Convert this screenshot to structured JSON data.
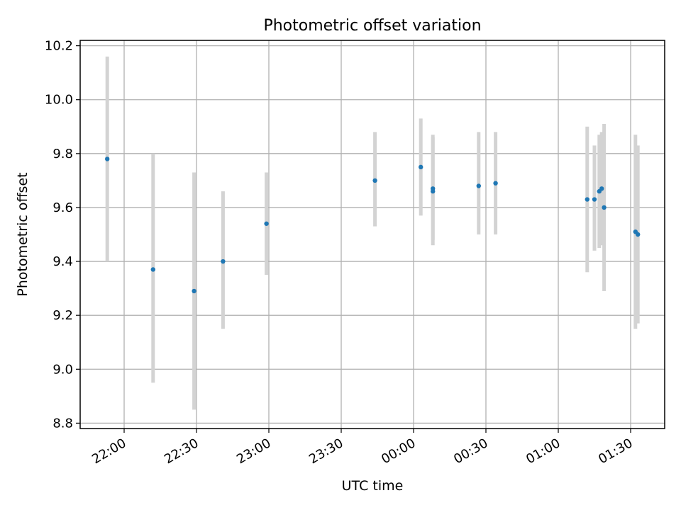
{
  "chart_data": {
    "type": "scatter",
    "title": "Photometric offset variation",
    "xlabel": "UTC time",
    "ylabel": "Photometric offset",
    "x_tick_labels": [
      "22:00",
      "22:30",
      "23:00",
      "23:30",
      "00:00",
      "00:30",
      "01:00",
      "01:30"
    ],
    "y_tick_labels": [
      "8.8",
      "9.0",
      "9.2",
      "9.4",
      "9.6",
      "9.8",
      "10.0",
      "10.2"
    ],
    "ylim": [
      8.78,
      10.22
    ],
    "grid": true,
    "points": [
      {
        "time": "21:53",
        "value": 9.78,
        "err_low": 9.4,
        "err_high": 10.16
      },
      {
        "time": "22:12",
        "value": 9.37,
        "err_low": 8.95,
        "err_high": 9.8
      },
      {
        "time": "22:29",
        "value": 9.29,
        "err_low": 8.85,
        "err_high": 9.73
      },
      {
        "time": "22:41",
        "value": 9.4,
        "err_low": 9.15,
        "err_high": 9.66
      },
      {
        "time": "22:59",
        "value": 9.54,
        "err_low": 9.35,
        "err_high": 9.73
      },
      {
        "time": "23:44",
        "value": 9.7,
        "err_low": 9.53,
        "err_high": 9.88
      },
      {
        "time": "00:03",
        "value": 9.75,
        "err_low": 9.57,
        "err_high": 9.93
      },
      {
        "time": "00:08",
        "value": 9.66,
        "err_low": 9.46,
        "err_high": 9.86
      },
      {
        "time": "00:08",
        "value": 9.67,
        "err_low": 9.48,
        "err_high": 9.87
      },
      {
        "time": "00:27",
        "value": 9.68,
        "err_low": 9.5,
        "err_high": 9.88
      },
      {
        "time": "00:34",
        "value": 9.69,
        "err_low": 9.5,
        "err_high": 9.88
      },
      {
        "time": "01:12",
        "value": 9.63,
        "err_low": 9.36,
        "err_high": 9.9
      },
      {
        "time": "01:15",
        "value": 9.63,
        "err_low": 9.44,
        "err_high": 9.83
      },
      {
        "time": "01:17",
        "value": 9.66,
        "err_low": 9.45,
        "err_high": 9.87
      },
      {
        "time": "01:18",
        "value": 9.67,
        "err_low": 9.46,
        "err_high": 9.88
      },
      {
        "time": "01:19",
        "value": 9.6,
        "err_low": 9.29,
        "err_high": 9.91
      },
      {
        "time": "01:32",
        "value": 9.51,
        "err_low": 9.15,
        "err_high": 9.87
      },
      {
        "time": "01:33",
        "value": 9.5,
        "err_low": 9.17,
        "err_high": 9.83
      }
    ],
    "colors": {
      "marker": "#1f77b4",
      "errorbar": "#d3d3d3",
      "grid": "#b0b0b0",
      "axes": "#000000"
    }
  }
}
